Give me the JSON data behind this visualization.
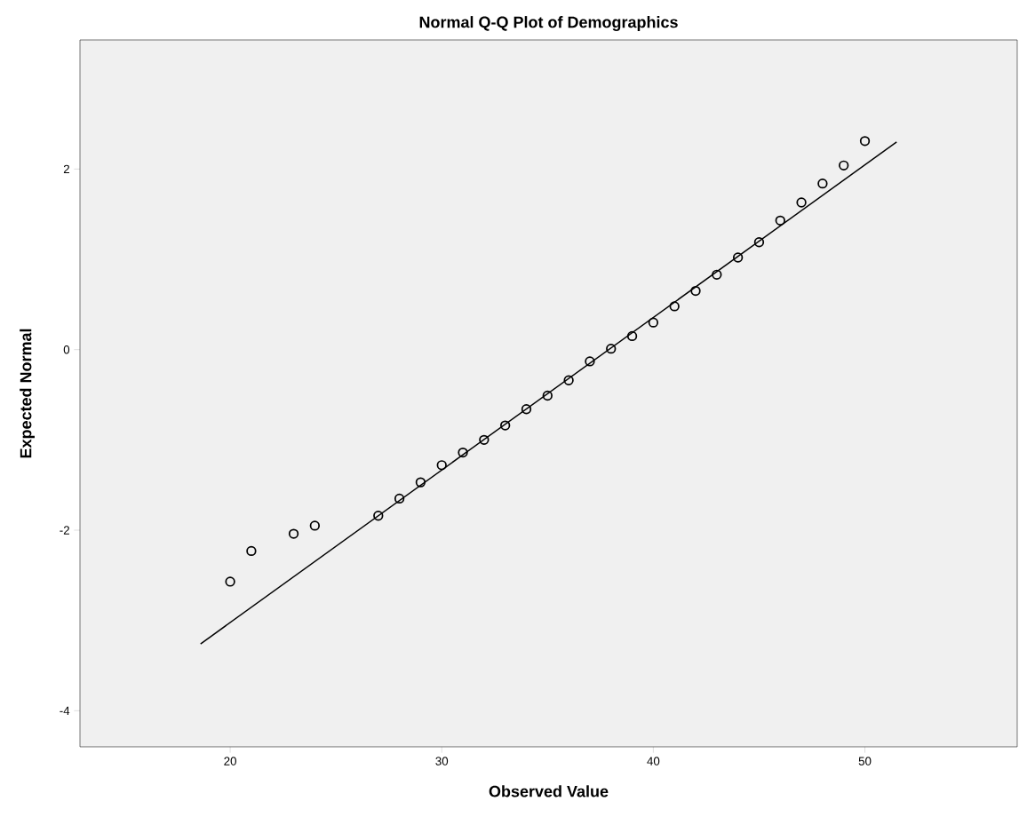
{
  "chart_data": {
    "type": "scatter",
    "title": "Normal Q-Q Plot of Demographics",
    "xlabel": "Observed Value",
    "ylabel": "Expected Normal",
    "xlim": [
      12.9,
      57.2
    ],
    "ylim": [
      -4.4,
      3.43
    ],
    "xticks": [
      20,
      30,
      40,
      50
    ],
    "yticks": [
      -4,
      -2,
      0,
      2
    ],
    "series": [
      {
        "marker": "circle",
        "color": "#000000",
        "x": [
          20,
          21,
          23,
          24,
          27,
          28,
          29,
          30,
          31,
          32,
          33,
          34,
          35,
          36,
          37,
          38,
          39,
          40,
          41,
          42,
          43,
          44,
          45,
          46,
          47,
          48,
          49,
          50
        ],
        "values": [
          -2.57,
          -2.23,
          -2.04,
          -1.95,
          -1.84,
          -1.65,
          -1.47,
          -1.28,
          -1.14,
          -1.0,
          -0.84,
          -0.66,
          -0.51,
          -0.34,
          -0.13,
          0.01,
          0.15,
          0.3,
          0.48,
          0.65,
          0.83,
          1.02,
          1.19,
          1.43,
          1.63,
          1.84,
          2.04,
          2.31
        ]
      },
      {
        "type": "line",
        "marker": "none",
        "color": "#000000",
        "x": [
          18.6,
          51.5
        ],
        "values": [
          -3.26,
          2.3
        ]
      }
    ]
  }
}
